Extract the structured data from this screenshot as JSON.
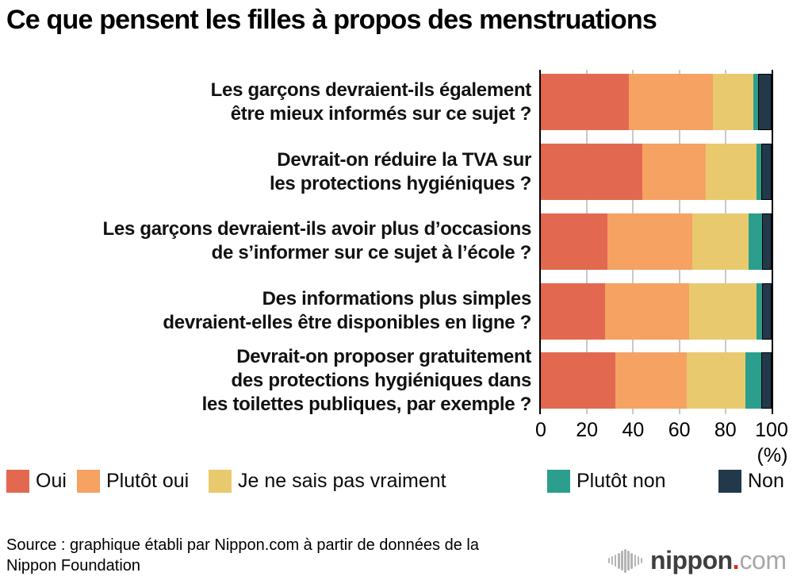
{
  "title": "Ce que pensent les filles à propos des menstruations",
  "chart_data": {
    "type": "bar",
    "orientation": "horizontal_stacked",
    "unit": "%",
    "unit_label": "(%)",
    "xlim": [
      0,
      100
    ],
    "x_ticks": [
      0,
      20,
      40,
      60,
      80,
      100
    ],
    "grid": "vertical, light gray, at 20/40/60/80",
    "legend_position": "bottom, single row",
    "categories": [
      {
        "lines": [
          "Les garçons devraient-ils également",
          "être mieux informés sur ce sujet ?"
        ]
      },
      {
        "lines": [
          "Devrait-on réduire la TVA sur",
          "les protections hygiéniques ?"
        ]
      },
      {
        "lines": [
          "Les garçons devraient-ils avoir plus d’occasions",
          "de s’informer sur ce sujet à l’école ?"
        ]
      },
      {
        "lines": [
          "Des informations plus simples",
          "devraient-elles être disponibles en ligne ?"
        ]
      },
      {
        "lines": [
          "Devrait-on proposer gratuitement",
          "des protections hygiéniques dans",
          "les toilettes publiques, par exemple ?"
        ]
      }
    ],
    "series": [
      {
        "name": "Oui",
        "color": "#e2694f",
        "values": [
          38.1,
          43.9,
          28.7,
          28.0,
          32.2
        ]
      },
      {
        "name": "Plutôt oui",
        "color": "#f5a263",
        "values": [
          36.5,
          27.6,
          36.9,
          36.3,
          30.9
        ]
      },
      {
        "name": "Je ne sais pas vraiment",
        "color": "#e9c96d",
        "values": [
          17.5,
          22.1,
          24.4,
          29.1,
          25.4
        ]
      },
      {
        "name": "Plutôt non",
        "color": "#2b9e8d",
        "values": [
          1.9,
          1.9,
          6.0,
          2.6,
          7.0
        ]
      },
      {
        "name": "Non",
        "color": "#21394a",
        "values": [
          6.0,
          4.5,
          4.0,
          4.0,
          4.5
        ],
        "outlined": true
      }
    ]
  },
  "source": {
    "lines": [
      "Source : graphique établi par Nippon.com à partir de données de la",
      "Nippon Foundation"
    ]
  },
  "logo": {
    "name": "nippon",
    "dot": ".",
    "tld": "com",
    "colors": {
      "name": "#3f3f3f",
      "dot": "#e8250d",
      "tld": "#a8a8a8"
    }
  }
}
